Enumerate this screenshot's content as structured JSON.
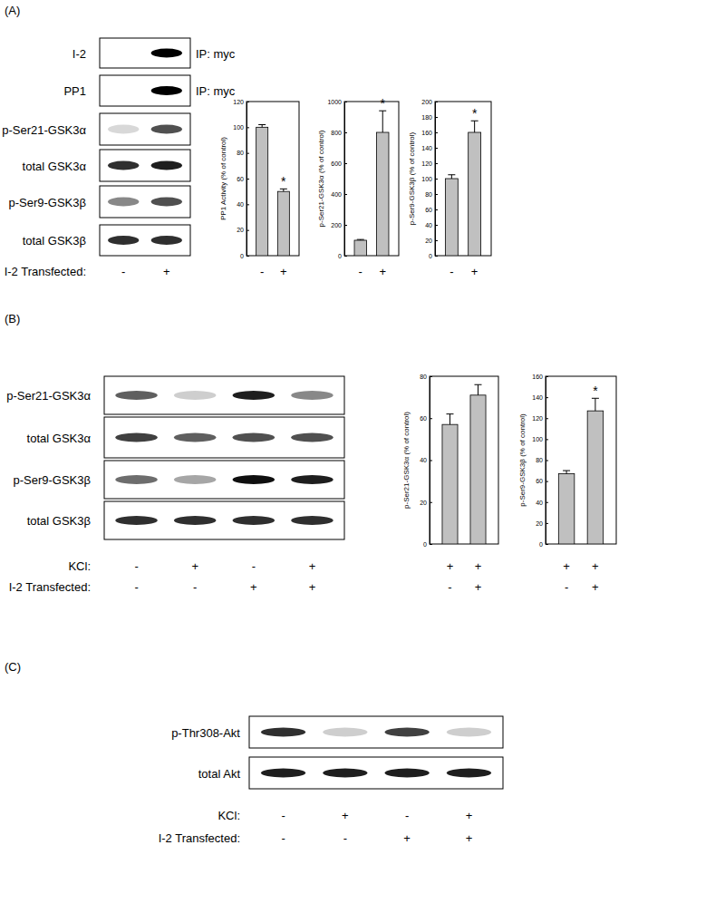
{
  "chart_data": [
    {
      "type": "bar",
      "y_label": "PP1 Activity (% of control)",
      "categories": [
        "-",
        "+"
      ],
      "values": [
        100,
        50
      ],
      "errors": [
        2,
        2
      ],
      "significance": [
        null,
        "*"
      ],
      "color": "#c0c0c0",
      "ylim": [
        0,
        120
      ],
      "yticks": [
        0,
        20,
        40,
        60,
        80,
        100,
        120
      ]
    },
    {
      "type": "bar",
      "y_label": "p-Ser21-GSK3α (% of control)",
      "categories": [
        "-",
        "+"
      ],
      "values": [
        100,
        800
      ],
      "errors": [
        5,
        140
      ],
      "significance": [
        null,
        "*"
      ],
      "color": "#c0c0c0",
      "ylim": [
        0,
        1000
      ],
      "yticks": [
        0,
        200,
        400,
        600,
        800,
        1000
      ]
    },
    {
      "type": "bar",
      "y_label": "p-Ser9-GSK3β (% of control)",
      "categories": [
        "-",
        "+"
      ],
      "values": [
        100,
        160
      ],
      "errors": [
        5,
        15
      ],
      "significance": [
        null,
        "*"
      ],
      "color": "#c0c0c0",
      "ylim": [
        0,
        200
      ],
      "yticks": [
        0,
        20,
        40,
        60,
        80,
        100,
        120,
        140,
        160,
        180,
        200
      ]
    },
    {
      "type": "bar",
      "y_label": "p-Ser21-GSK3α (% of control)",
      "upper_signs": [
        "+",
        "+"
      ],
      "categories": [
        "-",
        "+"
      ],
      "values": [
        57,
        71
      ],
      "errors": [
        5,
        5
      ],
      "significance": [
        null,
        null
      ],
      "color": "#c0c0c0",
      "ylim": [
        0,
        80
      ],
      "yticks": [
        0,
        20,
        40,
        60,
        80
      ]
    },
    {
      "type": "bar",
      "y_label": "p-Ser9-GSK3β (% of control)",
      "upper_signs": [
        "+",
        "+"
      ],
      "categories": [
        "-",
        "+"
      ],
      "values": [
        67,
        127
      ],
      "errors": [
        3,
        12
      ],
      "significance": [
        null,
        "*"
      ],
      "color": "#c0c0c0",
      "ylim": [
        0,
        160
      ],
      "yticks": [
        0,
        20,
        40,
        60,
        80,
        100,
        120,
        140,
        160
      ]
    }
  ],
  "blots": [
    {
      "letter": "(A)",
      "rows": [
        {
          "label": "I-2",
          "note": "IP: myc",
          "bands": [
            0,
            1
          ]
        },
        {
          "label": "PP1",
          "note": "IP: myc",
          "bands": [
            0,
            1
          ]
        },
        {
          "label": "p-Ser21-GSK3α",
          "bands": [
            0.25,
            0.75
          ]
        },
        {
          "label": "total GSK3α",
          "bands": [
            0.85,
            0.9
          ]
        },
        {
          "label": "p-Ser9-GSK3β",
          "bands": [
            0.55,
            0.75
          ]
        },
        {
          "label": "total GSK3β",
          "bands": [
            0.85,
            0.85
          ]
        }
      ],
      "conditions": [
        {
          "label": "I-2 Transfected:",
          "signs": [
            "-",
            "+"
          ]
        }
      ]
    },
    {
      "letter": "(B)",
      "rows": [
        {
          "label": "p-Ser21-GSK3α",
          "bands": [
            0.7,
            0.3,
            0.9,
            0.55
          ]
        },
        {
          "label": "total GSK3α",
          "bands": [
            0.8,
            0.7,
            0.75,
            0.75
          ]
        },
        {
          "label": "p-Ser9-GSK3β",
          "bands": [
            0.65,
            0.45,
            0.95,
            0.9
          ]
        },
        {
          "label": "total GSK3β",
          "bands": [
            0.85,
            0.85,
            0.85,
            0.85
          ]
        }
      ],
      "conditions": [
        {
          "label": "KCl:",
          "signs": [
            "-",
            "+",
            "-",
            "+"
          ]
        },
        {
          "label": "I-2 Transfected:",
          "signs": [
            "-",
            "-",
            "+",
            "+"
          ]
        }
      ]
    },
    {
      "letter": "(C)",
      "rows": [
        {
          "label": "p-Thr308-Akt",
          "bands": [
            0.85,
            0.3,
            0.8,
            0.3
          ]
        },
        {
          "label": "total Akt",
          "bands": [
            0.9,
            0.9,
            0.9,
            0.9
          ]
        }
      ],
      "conditions": [
        {
          "label": "KCl:",
          "signs": [
            "-",
            "+",
            "-",
            "+"
          ]
        },
        {
          "label": "I-2 Transfected:",
          "signs": [
            "-",
            "-",
            "+",
            "+"
          ]
        }
      ]
    }
  ]
}
